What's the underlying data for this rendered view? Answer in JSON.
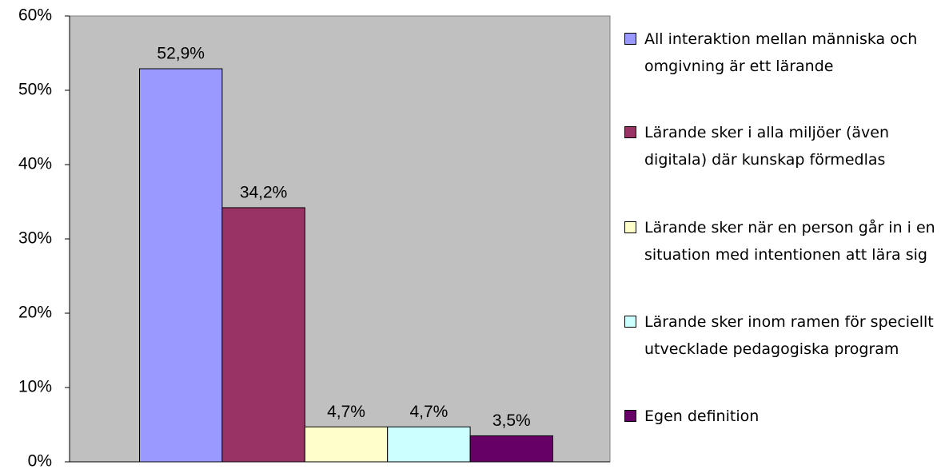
{
  "chart_data": {
    "type": "bar",
    "categories": [
      null
    ],
    "series": [
      {
        "name": "All interaktion mellan människa och omgivning är ett lärande",
        "color": "#9999ff",
        "values": [
          52.9
        ],
        "value_labels": [
          "52,9%"
        ]
      },
      {
        "name": "Lärande sker i alla miljöer (även digitala) där kunskap förmedlas",
        "color": "#993366",
        "values": [
          34.2
        ],
        "value_labels": [
          "34,2%"
        ]
      },
      {
        "name": "Lärande sker när en person går in i en situation med intentionen att lära sig",
        "color": "#ffffcc",
        "values": [
          4.7
        ],
        "value_labels": [
          "4,7%"
        ]
      },
      {
        "name": "Lärande sker inom ramen för speciellt utvecklade pedagogiska program",
        "color": "#ccffff",
        "values": [
          4.7
        ],
        "value_labels": [
          "4,7%"
        ]
      },
      {
        "name": "Egen definition",
        "color": "#660066",
        "values": [
          3.5
        ],
        "value_labels": [
          "3,5%"
        ]
      }
    ],
    "ylim": [
      0,
      60
    ],
    "yticks": [
      {
        "value": 0,
        "label": "0%"
      },
      {
        "value": 10,
        "label": "10%"
      },
      {
        "value": 20,
        "label": "20%"
      },
      {
        "value": 30,
        "label": "30%"
      },
      {
        "value": 40,
        "label": "40%"
      },
      {
        "value": 50,
        "label": "50%"
      },
      {
        "value": 60,
        "label": "60%"
      }
    ],
    "grid": false,
    "plot_background": "#c0c0c0",
    "legend": "right"
  }
}
